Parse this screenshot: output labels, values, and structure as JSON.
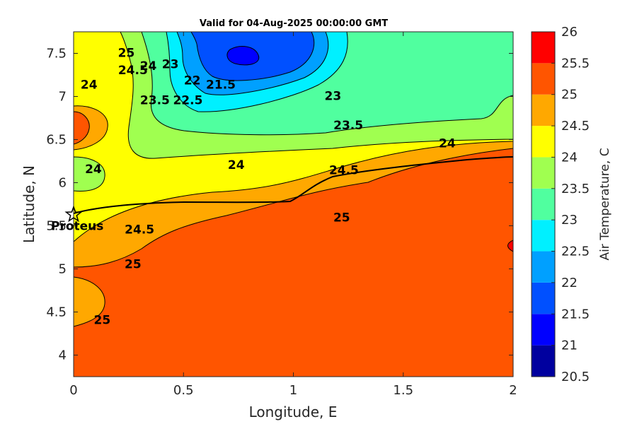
{
  "chart_data": {
    "type": "contour",
    "title": "Valid for 04-Aug-2025 00:00:00 GMT",
    "xlabel": "Longitude, E",
    "ylabel": "Latitude, N",
    "xlim": [
      0,
      2
    ],
    "ylim": [
      3.75,
      7.75
    ],
    "xticks": [
      "0",
      "0.5",
      "1",
      "1.5",
      "2"
    ],
    "yticks": [
      "4",
      "4.5",
      "5",
      "5.5",
      "6",
      "6.5",
      "7",
      "7.5"
    ],
    "colorbar": {
      "label": "Air Temperature, C",
      "levels": [
        20.5,
        21,
        21.5,
        22,
        22.5,
        23,
        23.5,
        24,
        24.5,
        25,
        25.5,
        26
      ],
      "tick_labels": [
        "20.5",
        "21",
        "21.5",
        "22",
        "22.5",
        "23",
        "23.5",
        "24",
        "24.5",
        "25",
        "25.5",
        "26"
      ],
      "colors": [
        "#00009f",
        "#0000ff",
        "#0050ff",
        "#00a0ff",
        "#00f0ff",
        "#50ff9f",
        "#a0ff50",
        "#ffff00",
        "#ffa800",
        "#ff5500",
        "#ff0000",
        "#a80000"
      ]
    },
    "contour_labels": [
      {
        "text": "21.5",
        "lon": 0.67,
        "lat": 7.13
      },
      {
        "text": "22",
        "lon": 0.54,
        "lat": 7.18
      },
      {
        "text": "22.5",
        "lon": 0.52,
        "lat": 6.95
      },
      {
        "text": "23",
        "lon": 0.44,
        "lat": 7.37
      },
      {
        "text": "23",
        "lon": 1.18,
        "lat": 7.0
      },
      {
        "text": "23.5",
        "lon": 0.37,
        "lat": 6.95
      },
      {
        "text": "23.5",
        "lon": 1.25,
        "lat": 6.66
      },
      {
        "text": "24",
        "lon": 0.34,
        "lat": 7.35
      },
      {
        "text": "24.5",
        "lon": 0.27,
        "lat": 7.3
      },
      {
        "text": "25",
        "lon": 0.24,
        "lat": 7.5
      },
      {
        "text": "24",
        "lon": 0.07,
        "lat": 7.13
      },
      {
        "text": "24",
        "lon": 0.09,
        "lat": 6.15
      },
      {
        "text": "24",
        "lon": 0.74,
        "lat": 6.2
      },
      {
        "text": "24",
        "lon": 1.7,
        "lat": 6.45
      },
      {
        "text": "24.5",
        "lon": 1.23,
        "lat": 6.14
      },
      {
        "text": "24.5",
        "lon": 0.3,
        "lat": 5.45
      },
      {
        "text": "25",
        "lon": 1.22,
        "lat": 5.59
      },
      {
        "text": "25",
        "lon": 0.27,
        "lat": 5.05
      },
      {
        "text": "25",
        "lon": 0.13,
        "lat": 4.4
      }
    ],
    "stations": [
      {
        "name": "Proteus",
        "lon": 0.0,
        "lat": 5.63
      }
    ]
  }
}
